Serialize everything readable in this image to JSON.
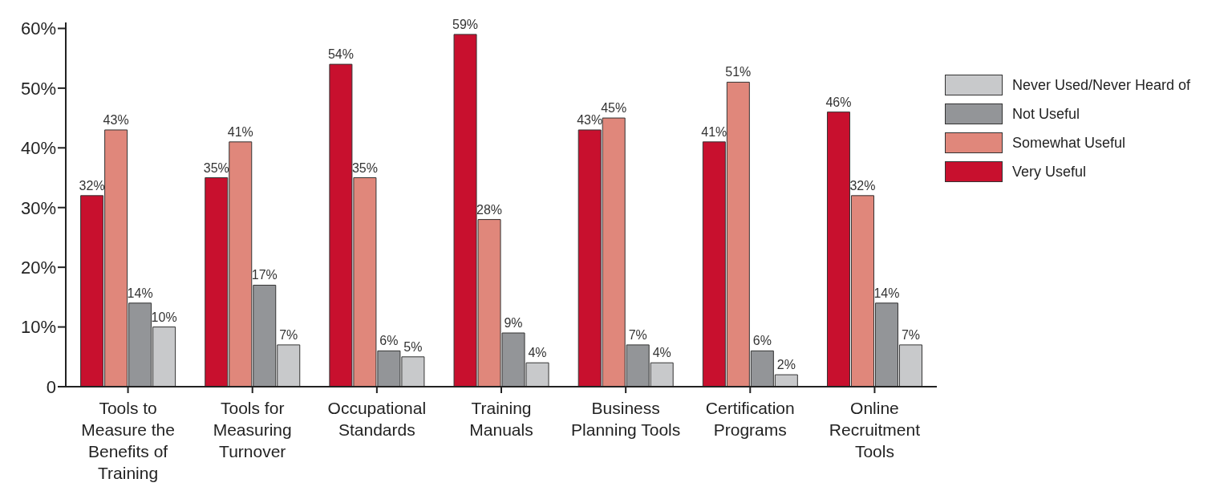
{
  "chart_data": {
    "type": "bar",
    "categories": [
      "Tools to Measure the Benefits of Training",
      "Tools for Measuring Turnover",
      "Occupational Standards",
      "Training Manuals",
      "Business Planning Tools",
      "Certification Programs",
      "Online Recruitment Tools"
    ],
    "series": [
      {
        "name": "Very Useful",
        "color": "#c8102e",
        "values": [
          32,
          35,
          54,
          59,
          43,
          41,
          46
        ],
        "value_labels": [
          "32%",
          "35%",
          "54%",
          "59%",
          "43%",
          "41%",
          "46%"
        ]
      },
      {
        "name": "Somewhat Useful",
        "color": "#e0877b",
        "values": [
          43,
          41,
          35,
          28,
          45,
          51,
          32
        ],
        "value_labels": [
          "43%",
          "41%",
          "35%",
          "28%",
          "45%",
          "51%",
          "32%"
        ]
      },
      {
        "name": "Not Useful",
        "color": "#939598",
        "values": [
          14,
          17,
          6,
          9,
          7,
          6,
          14
        ],
        "value_labels": [
          "14%",
          "17%",
          "6%",
          "9%",
          "7%",
          "6%",
          "14%"
        ]
      },
      {
        "name": "Never Used/Never Heard of",
        "color": "#c8c9cb",
        "values": [
          10,
          7,
          5,
          4,
          4,
          2,
          7
        ],
        "value_labels": [
          "10%",
          "7%",
          "5%",
          "4%",
          "4%",
          "2%",
          "7%"
        ]
      }
    ],
    "ylim": [
      0,
      61
    ],
    "yticks": [
      {
        "value": 0,
        "label": "0"
      },
      {
        "value": 10,
        "label": "10%"
      },
      {
        "value": 20,
        "label": "20%"
      },
      {
        "value": 30,
        "label": "30%"
      },
      {
        "value": 40,
        "label": "40%"
      },
      {
        "value": 50,
        "label": "50%"
      },
      {
        "value": 60,
        "label": "60%"
      }
    ],
    "grid": false,
    "legend": "top right"
  }
}
